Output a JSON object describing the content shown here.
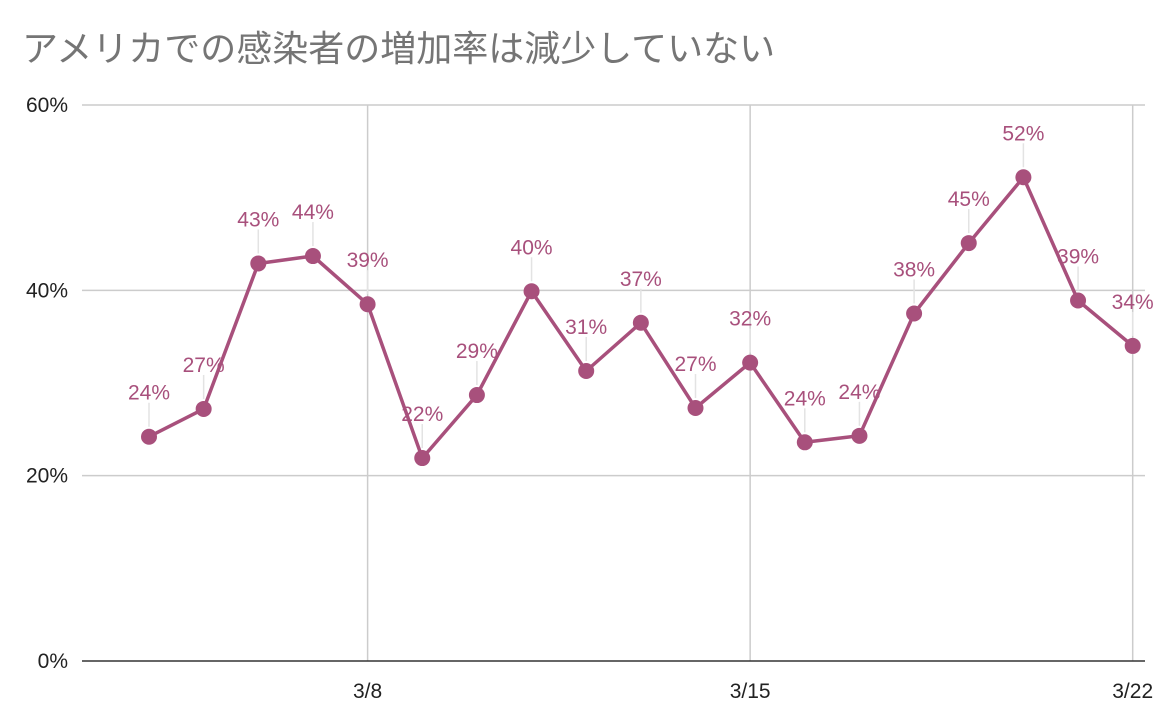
{
  "chart_data": {
    "type": "line",
    "title": "アメリカでの感染者の増加率は減少していない",
    "xlabel": "",
    "ylabel": "",
    "ylim": [
      0,
      60
    ],
    "y_ticks": [
      0,
      20,
      40,
      60
    ],
    "y_tick_labels": [
      "0%",
      "20%",
      "40%",
      "60%"
    ],
    "x_tick_labels": [
      {
        "label": "3/8",
        "index": 4
      },
      {
        "label": "3/15",
        "index": 11
      },
      {
        "label": "3/22",
        "index": 18
      }
    ],
    "grid": true,
    "legend": "none",
    "color": "#a8507c",
    "series": [
      {
        "values": [
          24.2,
          27.2,
          42.9,
          43.7,
          38.5,
          21.9,
          28.7,
          39.9,
          31.3,
          36.5,
          27.3,
          32.2,
          23.6,
          24.3,
          37.5,
          45.1,
          52.2,
          38.9,
          34.0
        ],
        "labels": [
          "24%",
          "27%",
          "43%",
          "44%",
          "39%",
          "22%",
          "29%",
          "40%",
          "31%",
          "37%",
          "27%",
          "32%",
          "24%",
          "24%",
          "38%",
          "45%",
          "52%",
          "39%",
          "34%"
        ]
      }
    ]
  }
}
